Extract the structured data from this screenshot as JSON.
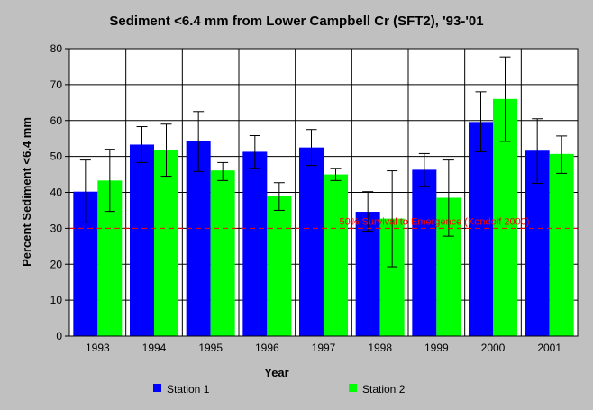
{
  "chart_data": {
    "type": "bar",
    "title": "Sediment <6.4 mm from Lower Campbell Cr (SFT2), '93-'01",
    "xlabel": "Year",
    "ylabel": "Percent Sediment <6.4 mm",
    "ylim": [
      0,
      80
    ],
    "yticks": [
      0,
      10,
      20,
      30,
      40,
      50,
      60,
      70,
      80
    ],
    "grid": true,
    "legend_position": "bottom",
    "categories": [
      "1993",
      "1994",
      "1995",
      "1996",
      "1997",
      "1998",
      "1999",
      "2000",
      "2001"
    ],
    "series": [
      {
        "name": "Station 1",
        "color": "#0000ff",
        "values": [
          40.2,
          53.3,
          54.2,
          51.3,
          52.5,
          34.6,
          46.3,
          59.6,
          51.6
        ],
        "error_low": [
          31.5,
          48.3,
          45.8,
          46.7,
          47.5,
          29.2,
          41.7,
          51.3,
          42.5
        ],
        "error_high": [
          49.0,
          58.3,
          62.5,
          55.8,
          57.5,
          40.2,
          50.8,
          68.0,
          60.5
        ]
      },
      {
        "name": "Station 2",
        "color": "#00ff00",
        "values": [
          43.3,
          51.7,
          46.1,
          38.9,
          45.0,
          32.7,
          38.5,
          66.0,
          50.7
        ],
        "error_low": [
          34.7,
          44.5,
          43.3,
          35.0,
          43.3,
          19.3,
          27.8,
          54.2,
          45.3
        ],
        "error_high": [
          52.0,
          59.0,
          48.3,
          42.7,
          46.7,
          46.0,
          49.0,
          77.7,
          55.7
        ]
      }
    ],
    "reference_line": {
      "value": 30,
      "label": "50% Survival to Emergence (Kondolf 2000)",
      "color": "#ff0000"
    }
  }
}
